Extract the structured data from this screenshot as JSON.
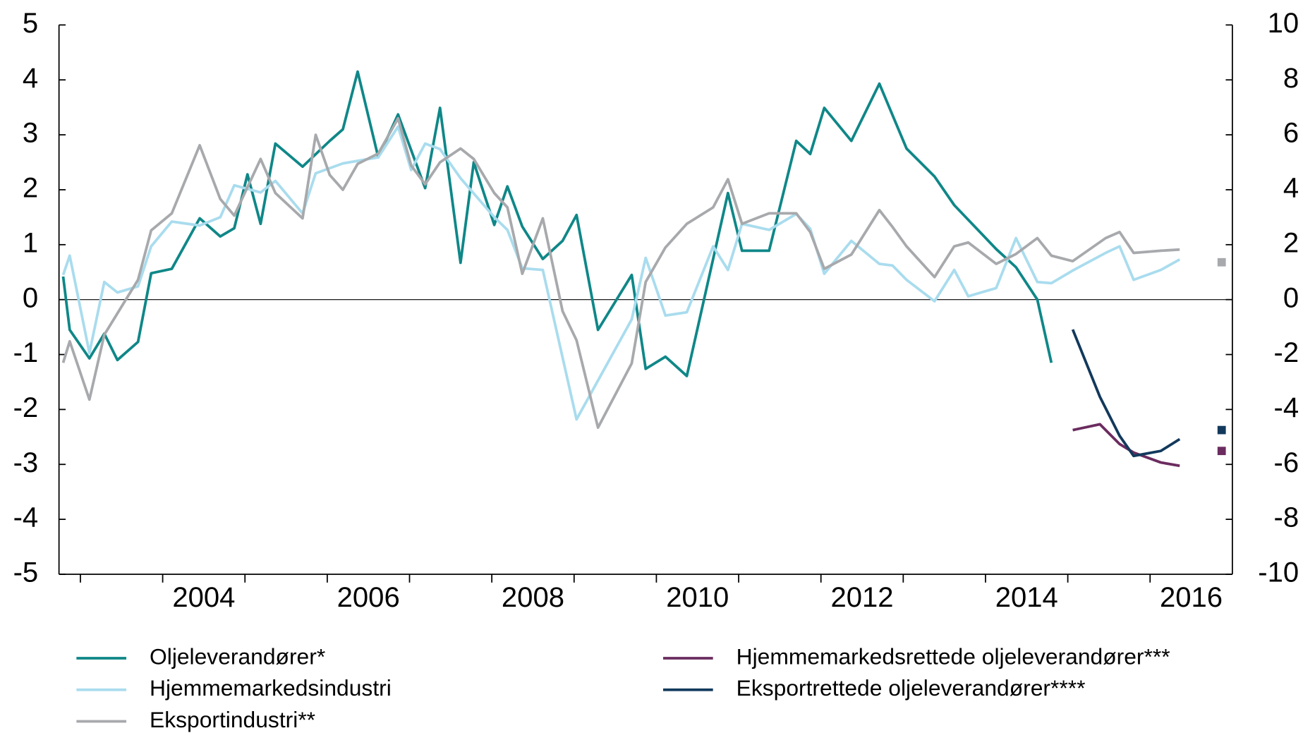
{
  "chart_data": {
    "type": "line",
    "xlim": [
      2002.74,
      2017
    ],
    "x_tick_marks": [
      2003,
      2004,
      2005,
      2006,
      2007,
      2008,
      2009,
      2010,
      2011,
      2012,
      2013,
      2014,
      2015,
      2016
    ],
    "xticks": [
      {
        "value": 2004.5,
        "label": "2004"
      },
      {
        "value": 2006.5,
        "label": "2006"
      },
      {
        "value": 2008.5,
        "label": "2008"
      },
      {
        "value": 2010.5,
        "label": "2010"
      },
      {
        "value": 2012.5,
        "label": "2012"
      },
      {
        "value": 2014.5,
        "label": "2014"
      },
      {
        "value": 2016.5,
        "label": "2016"
      }
    ],
    "ylim": [
      -5,
      5
    ],
    "yticks": [
      -5,
      -4,
      -3,
      -2,
      -1,
      0,
      1,
      2,
      3,
      4,
      5
    ],
    "y2lim": [
      -10,
      10
    ],
    "y2ticks": [
      -10,
      -8,
      -6,
      -4,
      -2,
      0,
      2,
      4,
      6,
      8,
      10
    ],
    "zero_line": true,
    "series": [
      {
        "name": "Oljeleverandører*",
        "color": "#0f8788",
        "x": [
          2002.79,
          2002.87,
          2003.11,
          2003.29,
          2003.45,
          2003.7,
          2003.86,
          2004.11,
          2004.45,
          2004.7,
          2004.87,
          2005.03,
          2005.19,
          2005.37,
          2005.7,
          2006.03,
          2006.19,
          2006.37,
          2006.62,
          2006.86,
          2007.19,
          2007.37,
          2007.62,
          2007.78,
          2008.03,
          2008.19,
          2008.37,
          2008.62,
          2008.86,
          2009.03,
          2009.29,
          2009.7,
          2009.87,
          2010.11,
          2010.37,
          2010.87,
          2011.04,
          2011.37,
          2011.7,
          2011.87,
          2012.04,
          2012.37,
          2012.71,
          2013.04,
          2013.38,
          2013.62,
          2014.13,
          2014.37,
          2014.63,
          2014.8
        ],
        "values": [
          0.42,
          -0.55,
          -1.07,
          -0.62,
          -1.1,
          -0.77,
          0.48,
          0.56,
          1.48,
          1.15,
          1.3,
          2.28,
          1.38,
          2.84,
          2.42,
          2.89,
          3.1,
          4.15,
          2.59,
          3.37,
          2.03,
          3.49,
          0.67,
          2.5,
          1.36,
          2.06,
          1.33,
          0.74,
          1.07,
          1.54,
          -0.55,
          0.45,
          -1.26,
          -1.04,
          -1.39,
          1.94,
          0.89,
          0.89,
          2.89,
          2.65,
          3.49,
          2.89,
          3.93,
          2.75,
          2.24,
          1.72,
          0.92,
          0.59,
          0.0,
          -1.15
        ]
      },
      {
        "name": "Hjemmemarkedsindustri",
        "color": "#a9dcee",
        "x": [
          2002.79,
          2002.87,
          2003.11,
          2003.29,
          2003.45,
          2003.7,
          2003.86,
          2004.11,
          2004.45,
          2004.7,
          2004.87,
          2005.19,
          2005.37,
          2005.7,
          2005.86,
          2006.19,
          2006.62,
          2006.86,
          2007.02,
          2007.19,
          2007.37,
          2007.62,
          2008.03,
          2008.19,
          2008.37,
          2008.62,
          2009.03,
          2009.7,
          2009.87,
          2010.11,
          2010.37,
          2010.69,
          2010.87,
          2011.04,
          2011.37,
          2011.7,
          2011.87,
          2012.04,
          2012.37,
          2012.71,
          2012.87,
          2013.04,
          2013.38,
          2013.62,
          2013.79,
          2014.13,
          2014.37,
          2014.63,
          2014.8,
          2015.06,
          2015.46,
          2015.63,
          2015.8,
          2016.13,
          2016.36
        ],
        "values": [
          0.45,
          0.8,
          -0.97,
          0.32,
          0.13,
          0.24,
          0.97,
          1.42,
          1.35,
          1.5,
          2.08,
          1.95,
          2.16,
          1.57,
          2.3,
          2.48,
          2.59,
          3.15,
          2.36,
          2.84,
          2.74,
          2.21,
          1.5,
          1.27,
          0.57,
          0.54,
          -2.18,
          -0.36,
          0.76,
          -0.29,
          -0.23,
          0.97,
          0.54,
          1.38,
          1.27,
          1.56,
          1.29,
          0.47,
          1.07,
          0.65,
          0.62,
          0.36,
          -0.03,
          0.54,
          0.06,
          0.21,
          1.12,
          0.32,
          0.3,
          0.53,
          0.85,
          0.97,
          0.36,
          0.54,
          0.73
        ]
      },
      {
        "name": "Eksportindustri**",
        "color": "#a7a9ac",
        "x": [
          2002.79,
          2002.87,
          2003.11,
          2003.29,
          2003.7,
          2003.86,
          2004.11,
          2004.45,
          2004.7,
          2004.87,
          2005.19,
          2005.37,
          2005.7,
          2005.86,
          2006.03,
          2006.19,
          2006.37,
          2006.62,
          2006.86,
          2007.02,
          2007.19,
          2007.37,
          2007.62,
          2007.78,
          2008.03,
          2008.19,
          2008.37,
          2008.62,
          2008.86,
          2009.03,
          2009.29,
          2009.7,
          2009.87,
          2010.11,
          2010.37,
          2010.69,
          2010.87,
          2011.04,
          2011.37,
          2011.7,
          2011.87,
          2012.04,
          2012.37,
          2012.71,
          2012.87,
          2013.04,
          2013.38,
          2013.62,
          2013.79,
          2014.13,
          2014.37,
          2014.63,
          2014.8,
          2015.06,
          2015.46,
          2015.63,
          2015.8,
          2016.13,
          2016.36
        ],
        "values": [
          -1.15,
          -0.76,
          -1.82,
          -0.64,
          0.36,
          1.26,
          1.57,
          2.81,
          1.83,
          1.53,
          2.56,
          1.94,
          1.48,
          3.0,
          2.27,
          2.0,
          2.47,
          2.66,
          3.3,
          2.44,
          2.1,
          2.5,
          2.75,
          2.56,
          1.94,
          1.68,
          0.47,
          1.48,
          -0.21,
          -0.74,
          -2.33,
          -1.16,
          0.32,
          0.95,
          1.38,
          1.68,
          2.19,
          1.38,
          1.57,
          1.57,
          1.23,
          0.56,
          0.82,
          1.63,
          1.32,
          0.97,
          0.41,
          0.97,
          1.04,
          0.65,
          0.83,
          1.12,
          0.8,
          0.7,
          1.12,
          1.23,
          0.85,
          0.89,
          0.91
        ],
        "marker": {
          "x": 2016.87,
          "value": 0.68
        }
      },
      {
        "name": "Hjemmemarkedsrettede oljeleverandører***",
        "color": "#6b2c5f",
        "axis": "y2",
        "x": [
          2015.06,
          2015.39,
          2015.63,
          2015.8,
          2016.13,
          2016.36
        ],
        "values": [
          -4.75,
          -4.54,
          -5.26,
          -5.57,
          -5.93,
          -6.05
        ],
        "marker": {
          "x": 2016.87,
          "value": -5.51
        }
      },
      {
        "name": "Eksportrettede oljeleverandører****",
        "color": "#12395c",
        "axis": "y2",
        "x": [
          2015.06,
          2015.39,
          2015.63,
          2015.8,
          2016.13,
          2016.36
        ],
        "values": [
          -1.09,
          -3.54,
          -4.96,
          -5.69,
          -5.51,
          -5.08
        ],
        "marker": {
          "x": 2016.87,
          "value": -4.75
        }
      }
    ]
  }
}
